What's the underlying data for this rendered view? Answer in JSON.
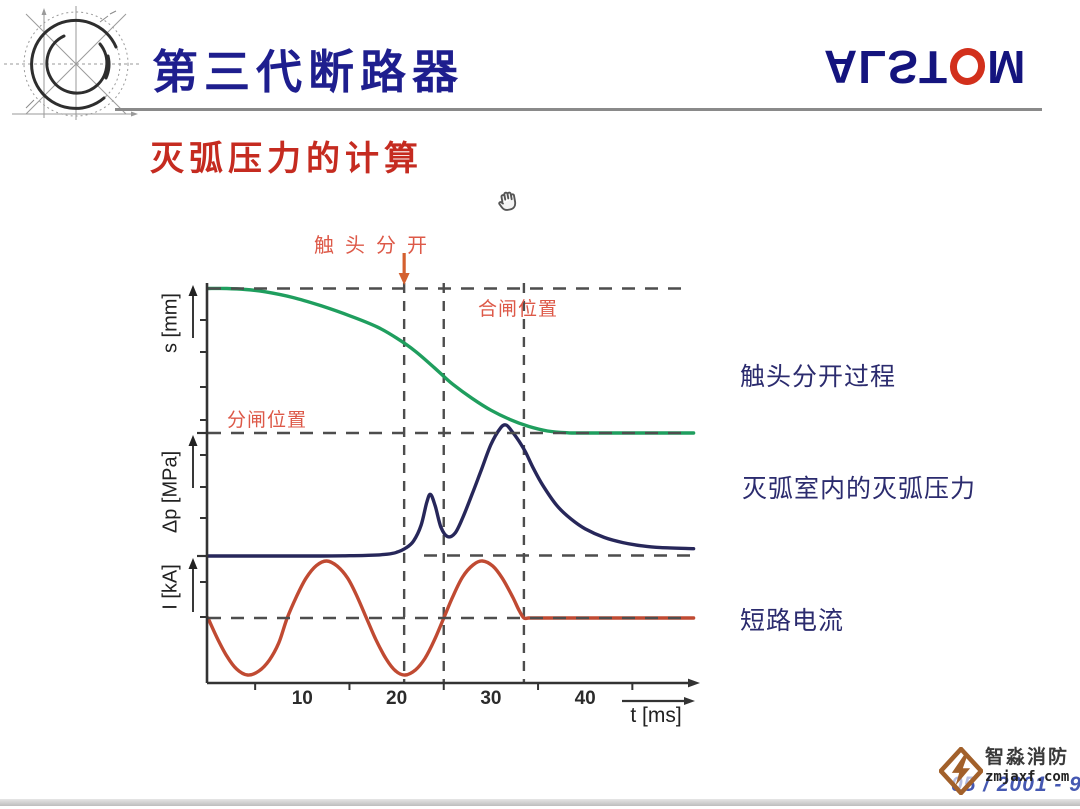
{
  "slide": {
    "title": "第三代断路器",
    "subtitle": "灭弧压力的计算",
    "brand": {
      "pre": "ALST",
      "post": "M"
    },
    "footer_page": "05 / 2001 - 9",
    "watermark": {
      "line1": "智淼消防",
      "line2": "zmjaxf.com"
    }
  },
  "chart_data": {
    "type": "line",
    "title": "",
    "xlabel": "t [ms]",
    "x_range_ms": [
      0,
      51.5
    ],
    "x_ticks": [
      10,
      20,
      30,
      40
    ],
    "x_minor_ticks": [
      5,
      15,
      25,
      35,
      45
    ],
    "grid": false,
    "legend_position": "right",
    "panels": [
      {
        "id": "contact_travel",
        "ylabel": "s [mm]",
        "right_label": "触头分开过程",
        "value_range": [
          0,
          1
        ]
      },
      {
        "id": "arc_pressure",
        "ylabel": "Δp [MPa]",
        "right_label": "灭弧室内的灭弧压力",
        "value_range": [
          0,
          1
        ]
      },
      {
        "id": "short_circuit_current",
        "ylabel": "I [kA]",
        "right_label": "短路电流",
        "value_range": [
          -1,
          1
        ]
      }
    ],
    "series": [
      {
        "panel": "contact_travel",
        "name": "触头分开过程",
        "color": "#1f9e5e",
        "points": [
          [
            0,
            1
          ],
          [
            2,
            1
          ],
          [
            4,
            0.993
          ],
          [
            6,
            0.978
          ],
          [
            9,
            0.938
          ],
          [
            12,
            0.88
          ],
          [
            15,
            0.812
          ],
          [
            18,
            0.732
          ],
          [
            20,
            0.657
          ],
          [
            22,
            0.565
          ],
          [
            24,
            0.452
          ],
          [
            25,
            0.392
          ],
          [
            26,
            0.335
          ],
          [
            28,
            0.24
          ],
          [
            30,
            0.158
          ],
          [
            32,
            0.094
          ],
          [
            34,
            0.046
          ],
          [
            36,
            0.014
          ],
          [
            38,
            0.002
          ],
          [
            40,
            0
          ],
          [
            51.5,
            0
          ]
        ]
      },
      {
        "panel": "arc_pressure",
        "name": "灭弧室内的灭弧压力",
        "color": "#27275a",
        "points": [
          [
            0,
            0
          ],
          [
            6,
            0
          ],
          [
            12,
            0
          ],
          [
            15,
            0.002
          ],
          [
            17,
            0.005
          ],
          [
            19,
            0.014
          ],
          [
            20,
            0.028
          ],
          [
            21,
            0.062
          ],
          [
            21.8,
            0.115
          ],
          [
            22.6,
            0.235
          ],
          [
            23.2,
            0.41
          ],
          [
            23.6,
            0.47
          ],
          [
            24.1,
            0.38
          ],
          [
            24.7,
            0.22
          ],
          [
            25.4,
            0.148
          ],
          [
            26.2,
            0.175
          ],
          [
            27,
            0.29
          ],
          [
            28,
            0.47
          ],
          [
            29,
            0.66
          ],
          [
            30,
            0.85
          ],
          [
            31,
            0.975
          ],
          [
            31.6,
            1
          ],
          [
            32.2,
            0.955
          ],
          [
            33,
            0.875
          ],
          [
            33.7,
            0.79
          ],
          [
            34.5,
            0.67
          ],
          [
            35.5,
            0.54
          ],
          [
            37,
            0.385
          ],
          [
            38.5,
            0.282
          ],
          [
            40,
            0.207
          ],
          [
            42,
            0.142
          ],
          [
            44,
            0.102
          ],
          [
            46,
            0.078
          ],
          [
            48,
            0.064
          ],
          [
            51.5,
            0.056
          ]
        ]
      },
      {
        "panel": "short_circuit_current",
        "name": "短路电流",
        "color": "#c04a32",
        "points": [
          [
            0,
            0
          ],
          [
            1,
            -0.36
          ],
          [
            2,
            -0.67
          ],
          [
            3,
            -0.89
          ],
          [
            4.2,
            -1
          ],
          [
            5.4,
            -0.93
          ],
          [
            6.5,
            -0.74
          ],
          [
            7.5,
            -0.44
          ],
          [
            8.4,
            0
          ],
          [
            9.4,
            0.38
          ],
          [
            10.4,
            0.7
          ],
          [
            11.5,
            0.92
          ],
          [
            12.6,
            1
          ],
          [
            13.7,
            0.91
          ],
          [
            14.8,
            0.7
          ],
          [
            15.8,
            0.38
          ],
          [
            16.8,
            0
          ],
          [
            17.8,
            -0.38
          ],
          [
            18.9,
            -0.72
          ],
          [
            19.9,
            -0.93
          ],
          [
            20.9,
            -1
          ],
          [
            22,
            -0.91
          ],
          [
            23,
            -0.71
          ],
          [
            24,
            -0.39
          ],
          [
            25,
            0
          ],
          [
            26,
            0.39
          ],
          [
            27,
            0.72
          ],
          [
            28.1,
            0.93
          ],
          [
            29.1,
            1
          ],
          [
            30.2,
            0.91
          ],
          [
            31.2,
            0.7
          ],
          [
            32.3,
            0.37
          ],
          [
            33,
            0.13
          ],
          [
            33.5,
            0
          ],
          [
            34,
            0
          ],
          [
            35,
            0
          ],
          [
            38,
            0
          ],
          [
            51.5,
            0
          ]
        ]
      }
    ],
    "annotations": {
      "contact_separation_label": "触头分开",
      "closed_position_label": "合闸位置",
      "open_position_label": "分闸位置",
      "event_arrow_t_ms": 20.8
    },
    "guide_lines": {
      "style": "dashed",
      "vertical_t_ms": [
        20.8,
        25,
        33.5
      ],
      "horizontal": [
        "closed_position",
        "open_position",
        "pressure_baseline",
        "current_zero"
      ]
    },
    "colors": {
      "dash": "#4d4d4d",
      "axis": "#333333",
      "annotation_red": "#dd5948",
      "arrow_orange": "#d4602f",
      "label_navy": "#2b2b6e"
    }
  }
}
